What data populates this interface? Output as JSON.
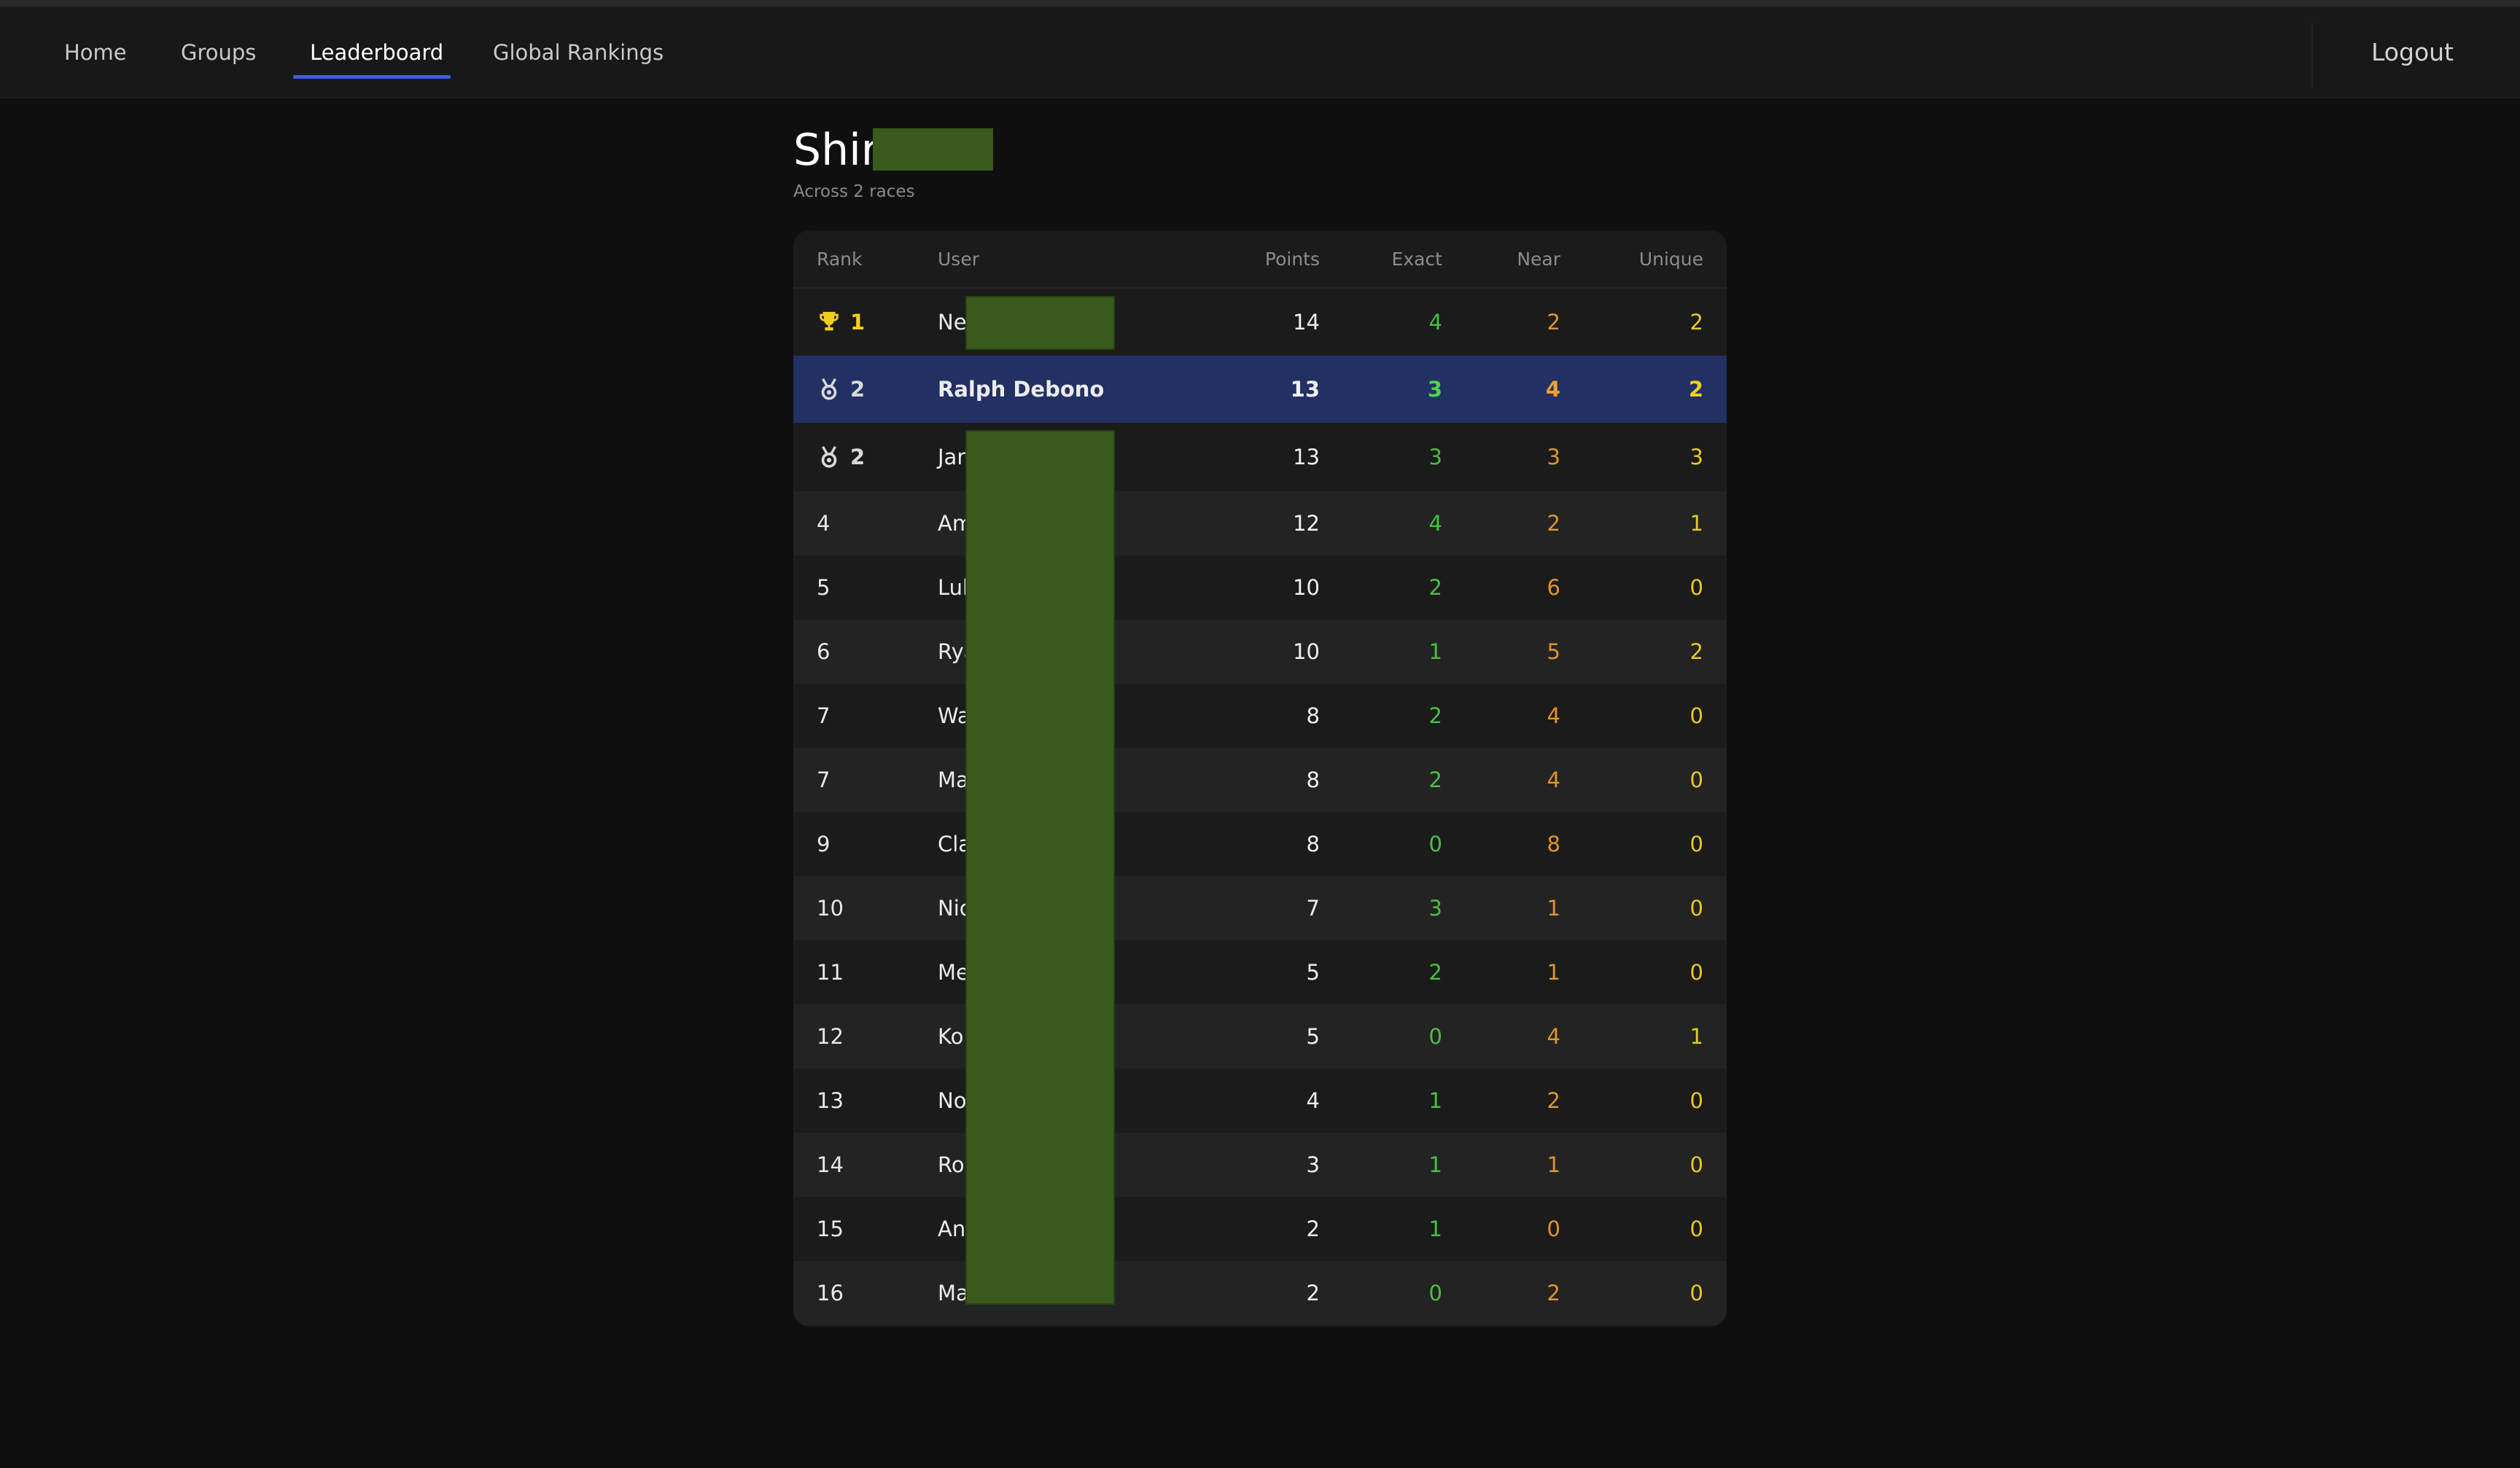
{
  "nav": {
    "items": [
      {
        "label": "Home"
      },
      {
        "label": "Groups"
      },
      {
        "label": "Leaderboard",
        "active": true
      },
      {
        "label": "Global Rankings"
      }
    ],
    "logout_label": "Logout"
  },
  "page": {
    "title": "Shir",
    "subtitle": "Across 2 races"
  },
  "table": {
    "headers": {
      "rank": "Rank",
      "user": "User",
      "points": "Points",
      "exact": "Exact",
      "near": "Near",
      "unique": "Unique"
    },
    "rows": [
      {
        "rank": "1",
        "icon": "trophy-icon",
        "user": "Ne",
        "points": "14",
        "exact": "4",
        "near": "2",
        "unique": "2"
      },
      {
        "rank": "2",
        "icon": "medal-icon",
        "user": "Ralph Debono",
        "points": "13",
        "exact": "3",
        "near": "4",
        "unique": "2",
        "current_user": true
      },
      {
        "rank": "2",
        "icon": "medal-icon",
        "user": "Jan",
        "points": "13",
        "exact": "3",
        "near": "3",
        "unique": "3"
      },
      {
        "rank": "4",
        "user": "Am",
        "points": "12",
        "exact": "4",
        "near": "2",
        "unique": "1"
      },
      {
        "rank": "5",
        "user": "Lul",
        "points": "10",
        "exact": "2",
        "near": "6",
        "unique": "0"
      },
      {
        "rank": "6",
        "user": "Rya",
        "points": "10",
        "exact": "1",
        "near": "5",
        "unique": "2"
      },
      {
        "rank": "7",
        "user": "Wa",
        "points": "8",
        "exact": "2",
        "near": "4",
        "unique": "0"
      },
      {
        "rank": "7",
        "user": "Ma",
        "points": "8",
        "exact": "2",
        "near": "4",
        "unique": "0"
      },
      {
        "rank": "9",
        "user": "Cla",
        "points": "8",
        "exact": "0",
        "near": "8",
        "unique": "0"
      },
      {
        "rank": "10",
        "user": "Nic",
        "points": "7",
        "exact": "3",
        "near": "1",
        "unique": "0"
      },
      {
        "rank": "11",
        "user": "Me",
        "points": "5",
        "exact": "2",
        "near": "1",
        "unique": "0"
      },
      {
        "rank": "12",
        "user": "Kor",
        "points": "5",
        "exact": "0",
        "near": "4",
        "unique": "1"
      },
      {
        "rank": "13",
        "user": "No",
        "points": "4",
        "exact": "1",
        "near": "2",
        "unique": "0"
      },
      {
        "rank": "14",
        "user": "Rol",
        "points": "3",
        "exact": "1",
        "near": "1",
        "unique": "0"
      },
      {
        "rank": "15",
        "user": "And",
        "points": "2",
        "exact": "1",
        "near": "0",
        "unique": "0"
      },
      {
        "rank": "16",
        "user": "Ma",
        "points": "2",
        "exact": "0",
        "near": "2",
        "unique": "0"
      }
    ]
  },
  "colors": {
    "accent": "#3d5fd6",
    "current_user_row": "#223064",
    "exact": "#45c23e",
    "near": "#e0952c",
    "unique": "#e3cc22",
    "gold": "#f2cf1d",
    "redaction": "#3a5a1e"
  }
}
